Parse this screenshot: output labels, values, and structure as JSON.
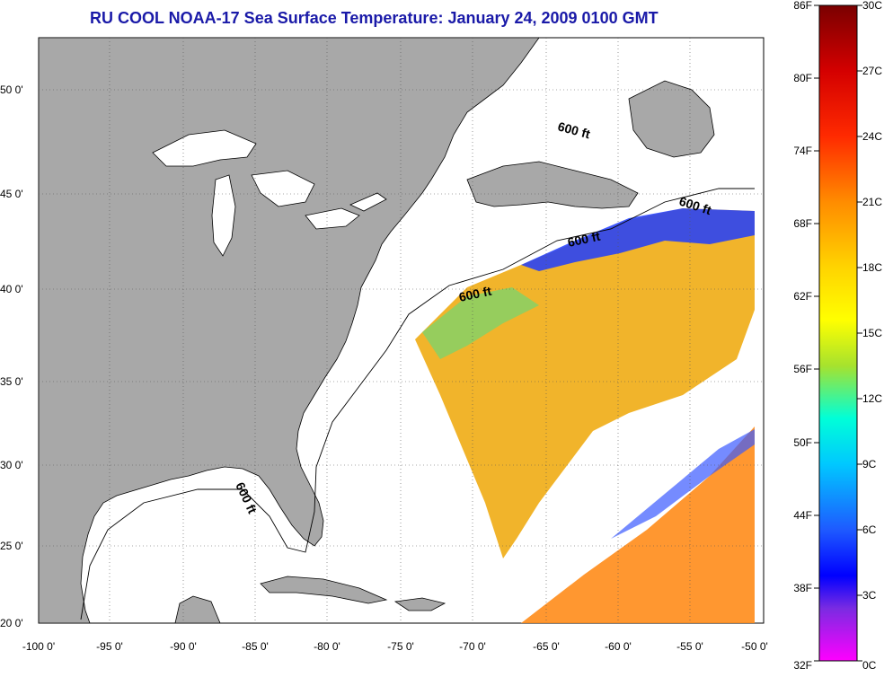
{
  "title": "RU COOL  NOAA-17  Sea Surface Temperature:  January 24, 2009 0100 GMT",
  "map": {
    "lat_labels": [
      "50 0'",
      "45 0'",
      "40 0'",
      "35 0'",
      "30 0'",
      "25 0'",
      "20 0'"
    ],
    "lon_labels": [
      "-100 0'",
      "-95 0'",
      "-90 0'",
      "-85 0'",
      "-80 0'",
      "-75 0'",
      "-70 0'",
      "-65 0'",
      "-60 0'",
      "-55 0'",
      "-50 0'"
    ],
    "isobath_label": "600 ft",
    "land_color": "#a8a8a8",
    "water_color": "#ffffff"
  },
  "colorbar": {
    "fahrenheit_labels": [
      "86F",
      "80F",
      "74F",
      "68F",
      "62F",
      "56F",
      "50F",
      "44F",
      "38F",
      "32F"
    ],
    "celsius_labels": [
      "30C",
      "27C",
      "24C",
      "21C",
      "18C",
      "15C",
      "12C",
      "9C",
      "6C",
      "3C",
      "0C"
    ],
    "stops": [
      "#8b0000",
      "#ff0000",
      "#ff8c00",
      "#ffd700",
      "#ffff00",
      "#9acd32",
      "#00ffff",
      "#1e90ff",
      "#0000ff",
      "#8a2be2",
      "#ff00ff"
    ]
  }
}
